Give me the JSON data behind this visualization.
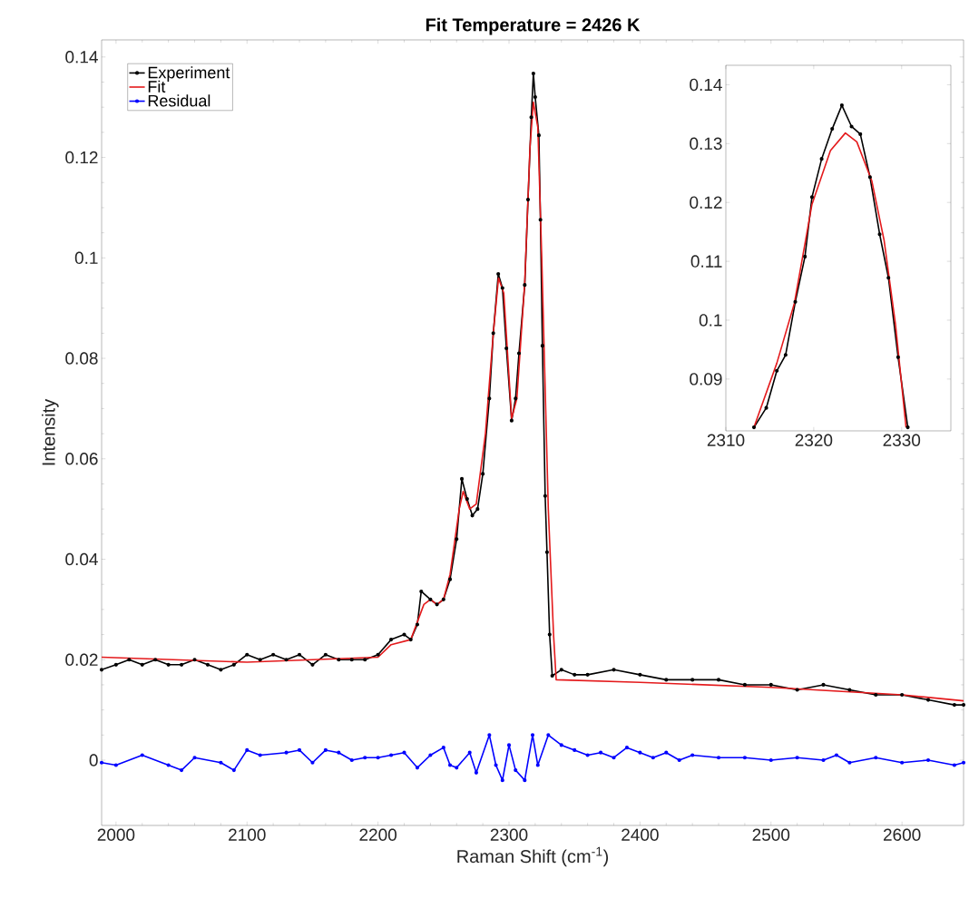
{
  "chart_data": [
    {
      "type": "line",
      "title": "**Fit Temperature = 2426 K**",
      "xlabel": "Raman Shift (cm$^{-1}$)",
      "ylabel": "Intensity",
      "xlim": [
        1989,
        2647
      ],
      "ylim": [
        -0.013,
        0.1434
      ],
      "xticks": [
        2000,
        2100,
        2200,
        2300,
        2400,
        2500,
        2600
      ],
      "yticks": [
        0,
        0.02,
        0.04,
        0.06,
        0.08,
        0.1,
        0.12,
        0.14
      ],
      "legend": "top left",
      "series": [
        {
          "name": "Experiment",
          "color": "#000000",
          "marker": "circle",
          "x": [
            1989,
            2000,
            2010,
            2020,
            2030,
            2040,
            2050,
            2060,
            2070,
            2080,
            2090,
            2100,
            2110,
            2120,
            2130,
            2140,
            2150,
            2160,
            2170,
            2180,
            2190,
            2200,
            2210,
            2220,
            2225,
            2230,
            2233,
            2240,
            2245,
            2250,
            2255,
            2260,
            2264,
            2268,
            2272,
            2276,
            2280,
            2285,
            2288,
            2291.8,
            2295,
            2298,
            2302,
            2305,
            2307.6,
            2312,
            2314.5,
            2317,
            2318.6,
            2320,
            2322.8,
            2324,
            2325.5,
            2327.6,
            2329,
            2331,
            2333,
            2340,
            2350,
            2360,
            2380,
            2400,
            2420,
            2440,
            2460,
            2480,
            2500,
            2520,
            2540,
            2560,
            2580,
            2600,
            2620,
            2640,
            2647
          ],
          "values": [
            0.018,
            0.019,
            0.02,
            0.019,
            0.02,
            0.019,
            0.019,
            0.02,
            0.019,
            0.018,
            0.019,
            0.021,
            0.02,
            0.021,
            0.02,
            0.021,
            0.019,
            0.021,
            0.02,
            0.02,
            0.02,
            0.021,
            0.024,
            0.025,
            0.024,
            0.027,
            0.0336,
            0.032,
            0.031,
            0.032,
            0.036,
            0.044,
            0.056,
            0.052,
            0.0487,
            0.05,
            0.057,
            0.072,
            0.085,
            0.0968,
            0.094,
            0.082,
            0.0676,
            0.072,
            0.081,
            0.0946,
            0.1116,
            0.128,
            0.1367,
            0.132,
            0.1244,
            0.1076,
            0.0825,
            0.0526,
            0.0414,
            0.025,
            0.0168,
            0.018,
            0.017,
            0.017,
            0.018,
            0.017,
            0.016,
            0.016,
            0.016,
            0.015,
            0.015,
            0.014,
            0.015,
            0.014,
            0.013,
            0.013,
            0.012,
            0.011,
            0.011
          ]
        },
        {
          "name": "Fit",
          "color": "#e41a1c",
          "marker": "none",
          "x": [
            1989,
            2100,
            2200,
            2210,
            2225,
            2235,
            2240,
            2245,
            2250,
            2255,
            2262,
            2265,
            2270,
            2275,
            2282,
            2288,
            2292,
            2296,
            2302,
            2306,
            2312,
            2316,
            2318.6,
            2322,
            2325,
            2330,
            2334,
            2336,
            2400,
            2500,
            2600,
            2647
          ],
          "values": [
            0.0205,
            0.0195,
            0.0205,
            0.023,
            0.024,
            0.031,
            0.032,
            0.031,
            0.032,
            0.037,
            0.05,
            0.0535,
            0.05,
            0.051,
            0.065,
            0.085,
            0.096,
            0.093,
            0.068,
            0.072,
            0.095,
            0.122,
            0.131,
            0.126,
            0.1,
            0.05,
            0.025,
            0.016,
            0.0155,
            0.0145,
            0.013,
            0.0118
          ]
        },
        {
          "name": "Residual",
          "color": "#0000ff",
          "marker": "circle",
          "x": [
            1989,
            2000,
            2020,
            2040,
            2050,
            2060,
            2080,
            2090,
            2100,
            2110,
            2130,
            2140,
            2150,
            2160,
            2170,
            2180,
            2190,
            2200,
            2210,
            2220,
            2230,
            2240,
            2250,
            2255,
            2260,
            2270,
            2275,
            2285,
            2290,
            2295,
            2300,
            2305,
            2312,
            2318,
            2322,
            2330,
            2340,
            2350,
            2360,
            2370,
            2380,
            2390,
            2400,
            2410,
            2420,
            2430,
            2440,
            2460,
            2480,
            2500,
            2520,
            2540,
            2550,
            2560,
            2580,
            2600,
            2620,
            2640,
            2647
          ],
          "values": [
            -0.0005,
            -0.001,
            0.001,
            -0.001,
            -0.002,
            0.0005,
            -0.0005,
            -0.002,
            0.002,
            0.001,
            0.0015,
            0.002,
            -0.0005,
            0.002,
            0.0015,
            0,
            0.0005,
            0.0005,
            0.001,
            0.0015,
            -0.0015,
            0.001,
            0.0025,
            -0.001,
            -0.0015,
            0.0015,
            -0.0025,
            0.005,
            -0.001,
            -0.004,
            0.003,
            -0.002,
            -0.004,
            0.005,
            -0.001,
            0.005,
            0.003,
            0.002,
            0.001,
            0.0015,
            0.0005,
            0.0025,
            0.0015,
            0.0005,
            0.0015,
            0,
            0.001,
            0.0005,
            0.0005,
            0,
            0.0005,
            0,
            0.001,
            -0.0005,
            0.0005,
            -0.0005,
            0,
            -0.001,
            -0.0005
          ]
        }
      ]
    },
    {
      "type": "line",
      "xlim": [
        2310,
        2335.6
      ],
      "ylim": [
        0.0812,
        0.1433
      ],
      "xticks": [
        2310,
        2320,
        2330
      ],
      "yticks": [
        0.09,
        0.1,
        0.11,
        0.12,
        0.13,
        0.14
      ],
      "series": [
        {
          "color": "#000000",
          "marker": "circle",
          "x": [
            2313.2,
            2314.6,
            2315.8,
            2316.8,
            2317.9,
            2319.0,
            2319.8,
            2320.9,
            2322.1,
            2323.2,
            2324.3,
            2325.3,
            2326.4,
            2327.5,
            2328.5,
            2329.6,
            2330.7
          ],
          "values": [
            0.0818,
            0.0851,
            0.0914,
            0.0941,
            0.1031,
            0.1108,
            0.1209,
            0.1274,
            0.1325,
            0.1365,
            0.1329,
            0.1316,
            0.1243,
            0.1146,
            0.1072,
            0.0937,
            0.0818
          ]
        },
        {
          "color": "#e41a1c",
          "marker": "none",
          "x": [
            2313.2,
            2315.8,
            2317.8,
            2319.8,
            2321.9,
            2323.6,
            2324.9,
            2326.6,
            2328.0,
            2329.3,
            2330.5
          ],
          "values": [
            0.0818,
            0.0927,
            0.1029,
            0.1197,
            0.1288,
            0.1318,
            0.1303,
            0.1237,
            0.1136,
            0.0993,
            0.0818
          ]
        }
      ]
    }
  ]
}
